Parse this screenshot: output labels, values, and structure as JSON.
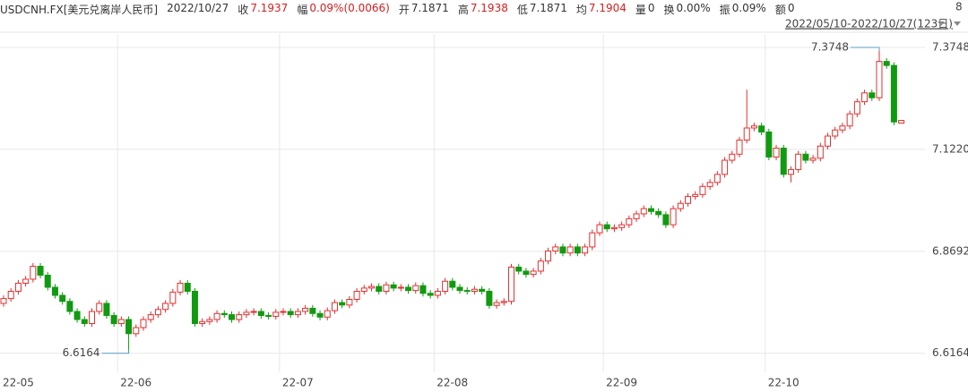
{
  "chart_data": {
    "type": "candlestick",
    "title": "USDCNH.FX[美元兑离岸人民币]",
    "info": [
      {
        "label": "2022/10/27",
        "value": null,
        "color": "#333333"
      },
      {
        "label": "收",
        "value": "7.1937",
        "color": "#d42020"
      },
      {
        "label": "幅",
        "value": "0.09%(0.0066)",
        "color": "#d42020"
      },
      {
        "label": "开",
        "value": "7.1871",
        "color": "#333333"
      },
      {
        "label": "高",
        "value": "7.1938",
        "color": "#d42020"
      },
      {
        "label": "低",
        "value": "7.1871",
        "color": "#333333"
      },
      {
        "label": "均",
        "value": "7.1904",
        "color": "#d42020"
      },
      {
        "label": "量",
        "value": "0",
        "color": "#333333"
      },
      {
        "label": "换",
        "value": "0.00%",
        "color": "#333333"
      },
      {
        "label": "振",
        "value": "0.09%",
        "color": "#333333"
      },
      {
        "label": "额",
        "value": "0",
        "color": "#333333"
      }
    ],
    "range_label": "2022/05/10-2022/10/27(123日)",
    "corner_text": "8",
    "up_color": "#e03030",
    "down_color": "#109a10",
    "max_color": "#d42020",
    "min_color": "#1a8a1a",
    "categories": [
      "22-05",
      null,
      null,
      null,
      null,
      null,
      null,
      null,
      null,
      null,
      null,
      null,
      null,
      null,
      null,
      null,
      "22-06",
      null,
      null,
      null,
      null,
      null,
      null,
      null,
      null,
      null,
      null,
      null,
      null,
      null,
      null,
      null,
      null,
      null,
      null,
      null,
      null,
      null,
      "22-07",
      null,
      null,
      null,
      null,
      null,
      null,
      null,
      null,
      null,
      null,
      null,
      null,
      null,
      null,
      null,
      null,
      null,
      null,
      null,
      null,
      "22-08",
      null,
      null,
      null,
      null,
      null,
      null,
      null,
      null,
      null,
      null,
      null,
      null,
      null,
      null,
      null,
      null,
      null,
      null,
      null,
      null,
      null,
      null,
      "22-09",
      null,
      null,
      null,
      null,
      null,
      null,
      null,
      null,
      null,
      null,
      null,
      null,
      null,
      null,
      null,
      null,
      null,
      null,
      null,
      null,
      null,
      "22-10",
      null,
      null,
      null,
      null,
      null,
      null,
      null,
      null,
      null,
      null,
      null,
      null,
      null,
      null,
      null,
      null,
      null,
      null
    ],
    "open": [
      6.74,
      6.752,
      6.77,
      6.79,
      6.8,
      6.832,
      6.81,
      6.78,
      6.76,
      6.745,
      6.72,
      6.7,
      6.69,
      6.72,
      6.74,
      6.71,
      6.69,
      6.7,
      6.665,
      6.68,
      6.7,
      6.712,
      6.725,
      6.74,
      6.768,
      6.79,
      6.77,
      6.69,
      6.695,
      6.7,
      6.715,
      6.712,
      6.7,
      6.712,
      6.718,
      6.72,
      6.71,
      6.708,
      6.718,
      6.72,
      6.712,
      6.72,
      6.728,
      6.715,
      6.706,
      6.722,
      6.742,
      6.736,
      6.75,
      6.77,
      6.778,
      6.782,
      6.77,
      6.786,
      6.778,
      6.78,
      6.772,
      6.784,
      6.765,
      6.76,
      6.77,
      6.795,
      6.78,
      6.772,
      6.77,
      6.775,
      6.77,
      6.735,
      6.742,
      6.745,
      6.83,
      6.82,
      6.812,
      6.82,
      6.845,
      6.87,
      6.88,
      6.865,
      6.88,
      6.865,
      6.88,
      6.915,
      6.935,
      6.925,
      6.928,
      6.935,
      6.95,
      6.962,
      6.975,
      6.968,
      6.96,
      6.935,
      6.975,
      6.988,
      7.005,
      7.01,
      7.03,
      7.04,
      7.06,
      7.095,
      7.11,
      7.145,
      7.175,
      7.18,
      7.165,
      7.103,
      7.125,
      7.06,
      7.072,
      7.11,
      7.095,
      7.1,
      7.13,
      7.155,
      7.17,
      7.18,
      7.21,
      7.24,
      7.262,
      7.25,
      7.34,
      7.33,
      7.1871
    ],
    "high": [
      6.76,
      6.778,
      6.798,
      6.808,
      6.84,
      6.84,
      6.818,
      6.788,
      6.768,
      6.753,
      6.728,
      6.708,
      6.728,
      6.748,
      6.748,
      6.718,
      6.708,
      6.708,
      6.688,
      6.708,
      6.72,
      6.733,
      6.748,
      6.776,
      6.798,
      6.798,
      6.778,
      6.703,
      6.708,
      6.723,
      6.723,
      6.72,
      6.72,
      6.726,
      6.728,
      6.728,
      6.718,
      6.726,
      6.728,
      6.728,
      6.728,
      6.736,
      6.736,
      6.723,
      6.73,
      6.75,
      6.75,
      6.758,
      6.778,
      6.786,
      6.79,
      6.79,
      6.794,
      6.794,
      6.788,
      6.788,
      6.792,
      6.792,
      6.773,
      6.778,
      6.803,
      6.803,
      6.788,
      6.78,
      6.783,
      6.783,
      6.778,
      6.75,
      6.753,
      6.838,
      6.838,
      6.828,
      6.828,
      6.853,
      6.878,
      6.888,
      6.888,
      6.888,
      6.888,
      6.888,
      6.923,
      6.943,
      6.943,
      6.936,
      6.943,
      6.958,
      6.97,
      6.983,
      6.983,
      6.976,
      6.968,
      6.983,
      6.996,
      7.013,
      7.018,
      7.038,
      7.048,
      7.068,
      7.103,
      7.118,
      7.153,
      7.27,
      7.188,
      7.188,
      7.173,
      7.133,
      7.133,
      7.08,
      7.118,
      7.118,
      7.108,
      7.138,
      7.163,
      7.178,
      7.188,
      7.218,
      7.248,
      7.27,
      7.27,
      7.3748,
      7.348,
      7.338,
      7.1938
    ],
    "low": [
      6.732,
      6.744,
      6.762,
      6.782,
      6.792,
      6.802,
      6.772,
      6.752,
      6.737,
      6.712,
      6.692,
      6.682,
      6.682,
      6.712,
      6.702,
      6.682,
      6.682,
      6.6164,
      6.657,
      6.672,
      6.692,
      6.704,
      6.717,
      6.732,
      6.76,
      6.762,
      6.682,
      6.682,
      6.687,
      6.692,
      6.704,
      6.692,
      6.692,
      6.704,
      6.71,
      6.702,
      6.7,
      6.7,
      6.71,
      6.704,
      6.704,
      6.712,
      6.707,
      6.698,
      6.698,
      6.714,
      6.728,
      6.728,
      6.742,
      6.762,
      6.77,
      6.762,
      6.762,
      6.77,
      6.77,
      6.764,
      6.764,
      6.757,
      6.752,
      6.752,
      6.762,
      6.772,
      6.764,
      6.762,
      6.762,
      6.762,
      6.727,
      6.727,
      6.734,
      6.737,
      6.812,
      6.804,
      6.804,
      6.812,
      6.837,
      6.862,
      6.857,
      6.857,
      6.857,
      6.857,
      6.872,
      6.907,
      6.917,
      6.917,
      6.92,
      6.927,
      6.942,
      6.954,
      6.96,
      6.952,
      6.927,
      6.927,
      6.967,
      6.98,
      6.997,
      7.002,
      7.022,
      7.032,
      7.052,
      7.087,
      7.102,
      7.137,
      7.167,
      7.157,
      7.095,
      7.095,
      7.052,
      7.04,
      7.064,
      7.087,
      7.087,
      7.092,
      7.122,
      7.147,
      7.162,
      7.172,
      7.202,
      7.232,
      7.242,
      7.242,
      7.322,
      7.182,
      7.1871
    ],
    "close": [
      6.752,
      6.77,
      6.79,
      6.8,
      6.832,
      6.81,
      6.78,
      6.76,
      6.745,
      6.72,
      6.7,
      6.69,
      6.72,
      6.74,
      6.71,
      6.69,
      6.7,
      6.665,
      6.68,
      6.7,
      6.712,
      6.725,
      6.74,
      6.768,
      6.79,
      6.77,
      6.69,
      6.695,
      6.7,
      6.715,
      6.712,
      6.7,
      6.712,
      6.718,
      6.72,
      6.71,
      6.708,
      6.718,
      6.72,
      6.712,
      6.72,
      6.728,
      6.715,
      6.706,
      6.722,
      6.742,
      6.736,
      6.75,
      6.77,
      6.778,
      6.782,
      6.77,
      6.786,
      6.778,
      6.78,
      6.772,
      6.784,
      6.765,
      6.76,
      6.77,
      6.795,
      6.78,
      6.772,
      6.77,
      6.775,
      6.77,
      6.735,
      6.742,
      6.745,
      6.83,
      6.82,
      6.812,
      6.82,
      6.845,
      6.87,
      6.88,
      6.865,
      6.88,
      6.865,
      6.88,
      6.915,
      6.935,
      6.925,
      6.928,
      6.935,
      6.95,
      6.962,
      6.975,
      6.968,
      6.96,
      6.935,
      6.975,
      6.988,
      7.005,
      7.01,
      7.03,
      7.04,
      7.06,
      7.095,
      7.11,
      7.145,
      7.175,
      7.18,
      7.165,
      7.103,
      7.125,
      7.06,
      7.072,
      7.11,
      7.095,
      7.1,
      7.13,
      7.155,
      7.17,
      7.18,
      7.21,
      7.24,
      7.262,
      7.25,
      7.34,
      7.33,
      7.19,
      7.1937
    ],
    "max_index": 119,
    "min_index": 17,
    "ylim": [
      6.578,
      7.408
    ],
    "yticks": [
      6.6164,
      6.8692,
      {
        "value": 7.122,
        "label": "7.1220"
      },
      7.3748
    ],
    "grid": true
  }
}
